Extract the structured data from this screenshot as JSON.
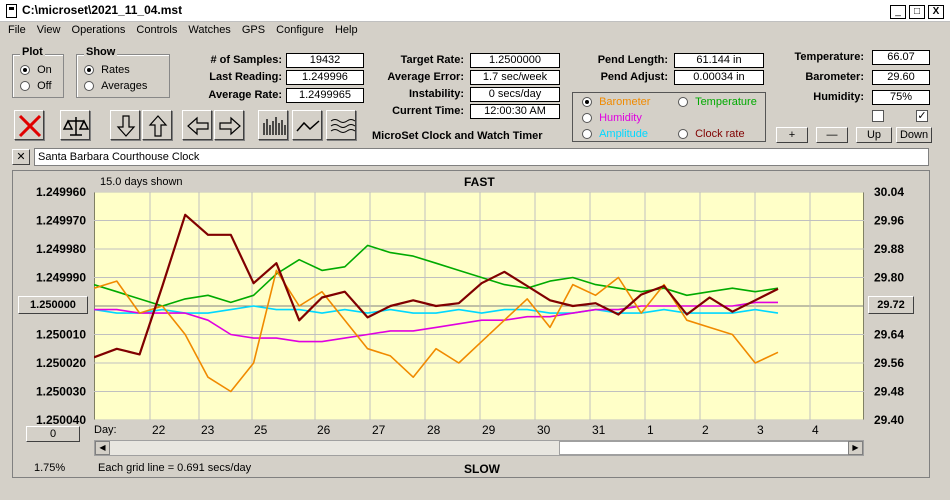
{
  "window": {
    "title": "C:\\microset\\2021_11_04.mst",
    "min": "_",
    "max": "□",
    "close": "X"
  },
  "menu": [
    "File",
    "View",
    "Operations",
    "Controls",
    "Watches",
    "GPS",
    "Configure",
    "Help"
  ],
  "plot_group": {
    "label": "Plot",
    "on": "On",
    "off": "Off",
    "selected": "On"
  },
  "show_group": {
    "label": "Show",
    "rates": "Rates",
    "averages": "Averages",
    "selected": "Rates"
  },
  "stats": {
    "samples_label": "# of Samples:",
    "samples": "19432",
    "last_label": "Last Reading:",
    "last": "1.249996",
    "avg_rate_label": "Average Rate:",
    "avg_rate": "1.2499965",
    "target_label": "Target Rate:",
    "target": "1.2500000",
    "avg_err_label": "Average Error:",
    "avg_err": "1.7 sec/week",
    "instab_label": "Instability:",
    "instab": "0 secs/day",
    "time_label": "Current Time:",
    "time": "12:00:30 AM",
    "app_caption": "MicroSet Clock and Watch Timer",
    "pend_len_label": "Pend Length:",
    "pend_len": "61.144 in",
    "pend_adj_label": "Pend Adjust:",
    "pend_adj": "0.00034 in",
    "temp_label": "Temperature:",
    "temp": "66.07",
    "baro_label": "Barometer:",
    "baro": "29.60",
    "hum_label": "Humidity:",
    "hum": "75%"
  },
  "series_select": {
    "barometer": "Barometer",
    "temperature": "Temperature",
    "humidity": "Humidity",
    "amplitude": "Amplitude",
    "clock_rate": "Clock rate",
    "selected": "Barometer",
    "colors": {
      "barometer": "#f08a00",
      "temperature": "#00aa00",
      "humidity": "#e000e0",
      "amplitude": "#00d8ff",
      "clock_rate": "#800000"
    }
  },
  "scale_buttons": {
    "plus": "+",
    "minus": "—",
    "up": "Up",
    "down": "Down"
  },
  "checkboxes": {
    "left": "",
    "right": "✓"
  },
  "clock_name": "Santa Barbara Courthouse Clock",
  "clear_btn": "✕",
  "chart": {
    "days_shown": "15.0 days shown",
    "top_label": "FAST",
    "bottom_label": "SLOW",
    "grid_note": "Each grid line = 0.691 secs/day",
    "percent": "1.75%",
    "day_prefix": "Day:",
    "center_left_btn": "1.250000",
    "center_right_btn": "29.72",
    "bottom_left_btn": "0"
  },
  "chart_data": {
    "type": "line",
    "left_axis": {
      "ticks": [
        "1.249960",
        "1.249970",
        "1.249980",
        "1.249990",
        "1.250000",
        "1.250010",
        "1.250020",
        "1.250030",
        "1.250040"
      ],
      "ylim": [
        1.24996,
        1.25004
      ],
      "inverted": true
    },
    "right_axis": {
      "ticks": [
        "30.04",
        "29.96",
        "29.88",
        "29.80",
        "29.72",
        "29.64",
        "29.56",
        "29.48",
        "29.40"
      ],
      "ylim": [
        29.4,
        30.04
      ]
    },
    "days": [
      "22",
      "23",
      "25",
      "26",
      "27",
      "28",
      "29",
      "30",
      "31",
      "1",
      "2",
      "3",
      "4"
    ],
    "grid": true,
    "series": [
      {
        "name": "Clock rate",
        "color": "#800000",
        "values": [
          1.250018,
          1.250015,
          1.250017,
          1.249993,
          1.249968,
          1.249975,
          1.249975,
          1.249992,
          1.249985,
          1.250005,
          1.249997,
          1.249995,
          1.250004,
          1.25,
          1.249998,
          1.25,
          1.249999,
          1.249992,
          1.249988,
          1.249993,
          1.249998,
          1.25,
          1.249999,
          1.250003,
          1.249996,
          1.249993,
          1.250003,
          1.249997,
          1.250002,
          1.249998,
          1.249994
        ]
      },
      {
        "name": "Barometer",
        "color": "#f08a00",
        "values": [
          29.77,
          29.79,
          29.7,
          29.72,
          29.64,
          29.52,
          29.48,
          29.56,
          29.82,
          29.72,
          29.76,
          29.68,
          29.6,
          29.58,
          29.52,
          29.6,
          29.56,
          29.62,
          29.68,
          29.74,
          29.66,
          29.78,
          29.75,
          29.8,
          29.7,
          29.78,
          29.68,
          29.66,
          29.64,
          29.56,
          29.59
        ]
      },
      {
        "name": "Temperature",
        "color": "#00aa00",
        "values": [
          29.78,
          29.76,
          29.74,
          29.72,
          29.74,
          29.75,
          29.73,
          29.75,
          29.81,
          29.85,
          29.82,
          29.83,
          29.89,
          29.87,
          29.86,
          29.84,
          29.82,
          29.8,
          29.78,
          29.77,
          29.79,
          29.8,
          29.78,
          29.77,
          29.76,
          29.77,
          29.75,
          29.76,
          29.77,
          29.76,
          29.77
        ]
      },
      {
        "name": "Humidity",
        "color": "#e000e0",
        "values": [
          29.71,
          29.71,
          29.7,
          29.7,
          29.7,
          29.68,
          29.64,
          29.63,
          29.63,
          29.62,
          29.62,
          29.63,
          29.64,
          29.65,
          29.65,
          29.66,
          29.67,
          29.68,
          29.68,
          29.69,
          29.69,
          29.7,
          29.71,
          29.71,
          29.72,
          29.72,
          29.72,
          29.72,
          29.72,
          29.73,
          29.73
        ]
      },
      {
        "name": "Amplitude",
        "color": "#00d8ff",
        "values": [
          29.71,
          29.7,
          29.7,
          29.71,
          29.7,
          29.7,
          29.71,
          29.72,
          29.71,
          29.71,
          29.7,
          29.71,
          29.7,
          29.71,
          29.7,
          29.7,
          29.71,
          29.7,
          29.71,
          29.71,
          29.7,
          29.7,
          29.71,
          29.7,
          29.7,
          29.71,
          29.7,
          29.7,
          29.7,
          29.71,
          29.7
        ]
      }
    ]
  }
}
